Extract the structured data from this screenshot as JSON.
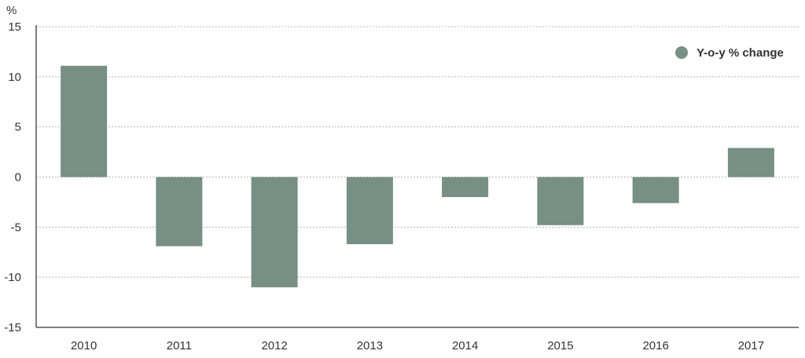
{
  "chart_data": {
    "type": "bar",
    "unit_label": "%",
    "categories": [
      "2010",
      "2011",
      "2012",
      "2013",
      "2014",
      "2015",
      "2016",
      "2017"
    ],
    "series": [
      {
        "name": "Y-o-y % change",
        "values": [
          11.1,
          -6.9,
          -11.0,
          -6.7,
          -2.0,
          -4.8,
          -2.6,
          2.9
        ]
      }
    ],
    "ylim": [
      -15,
      15
    ],
    "yticks": [
      15,
      10,
      5,
      0,
      -5,
      -10,
      -15
    ],
    "grid": true,
    "legend_position": "top-right",
    "bar_color": "#778f84"
  }
}
